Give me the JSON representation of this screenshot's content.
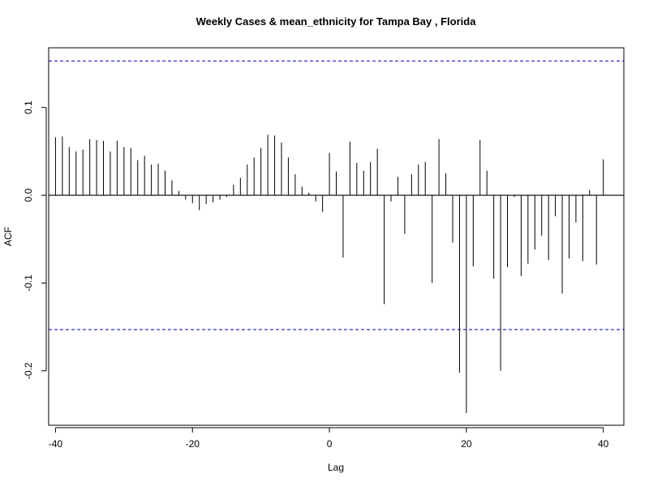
{
  "chart_data": {
    "type": "bar",
    "title": "Weekly Cases & mean_ethnicity for Tampa Bay , Florida",
    "xlabel": "Lag",
    "ylabel": "ACF",
    "xlim": [
      -41,
      43
    ],
    "ylim": [
      -0.262,
      0.168
    ],
    "x_ticks": [
      -40,
      -20,
      0,
      20,
      40
    ],
    "x_tick_labels": [
      "-40",
      "-20",
      "0",
      "20",
      "40"
    ],
    "y_ticks": [
      -0.2,
      -0.1,
      0.0,
      0.1
    ],
    "y_tick_labels": [
      "-0.2",
      "-0.1",
      "0.0",
      "0.1"
    ],
    "confidence_limits": [
      0.153,
      -0.153
    ],
    "colors": {
      "bars": "#000000",
      "zero_line": "#000000",
      "confidence": "#0000cc"
    },
    "lags": [
      -40,
      -39,
      -38,
      -37,
      -36,
      -35,
      -34,
      -33,
      -32,
      -31,
      -30,
      -29,
      -28,
      -27,
      -26,
      -25,
      -24,
      -23,
      -22,
      -21,
      -20,
      -19,
      -18,
      -17,
      -16,
      -15,
      -14,
      -13,
      -12,
      -11,
      -10,
      -9,
      -8,
      -7,
      -6,
      -5,
      -4,
      -3,
      -2,
      -1,
      0,
      1,
      2,
      3,
      4,
      5,
      6,
      7,
      8,
      9,
      10,
      11,
      12,
      13,
      14,
      15,
      16,
      17,
      18,
      19,
      20,
      21,
      22,
      23,
      24,
      25,
      26,
      27,
      28,
      29,
      30,
      31,
      32,
      33,
      34,
      35,
      36,
      37,
      38,
      39,
      40
    ],
    "values": [
      0.066,
      0.067,
      0.055,
      0.05,
      0.052,
      0.064,
      0.063,
      0.062,
      0.05,
      0.062,
      0.055,
      0.054,
      0.04,
      0.045,
      0.035,
      0.036,
      0.028,
      0.017,
      0.005,
      -0.005,
      -0.009,
      -0.017,
      -0.01,
      -0.008,
      -0.005,
      -0.002,
      0.012,
      0.02,
      0.035,
      0.043,
      0.054,
      0.069,
      0.068,
      0.06,
      0.043,
      0.024,
      0.01,
      0.003,
      -0.007,
      -0.019,
      0.048,
      0.027,
      -0.071,
      0.061,
      0.037,
      0.028,
      0.038,
      0.053,
      -0.124,
      -0.007,
      0.021,
      -0.044,
      0.024,
      0.035,
      0.038,
      -0.1,
      0.064,
      0.025,
      -0.054,
      -0.202,
      -0.248,
      -0.081,
      0.063,
      0.028,
      -0.095,
      -0.2,
      -0.082,
      -0.002,
      -0.092,
      -0.078,
      -0.062,
      -0.046,
      -0.074,
      -0.024,
      -0.112,
      -0.072,
      -0.031,
      -0.075,
      0.006,
      -0.079,
      0.041
    ]
  }
}
